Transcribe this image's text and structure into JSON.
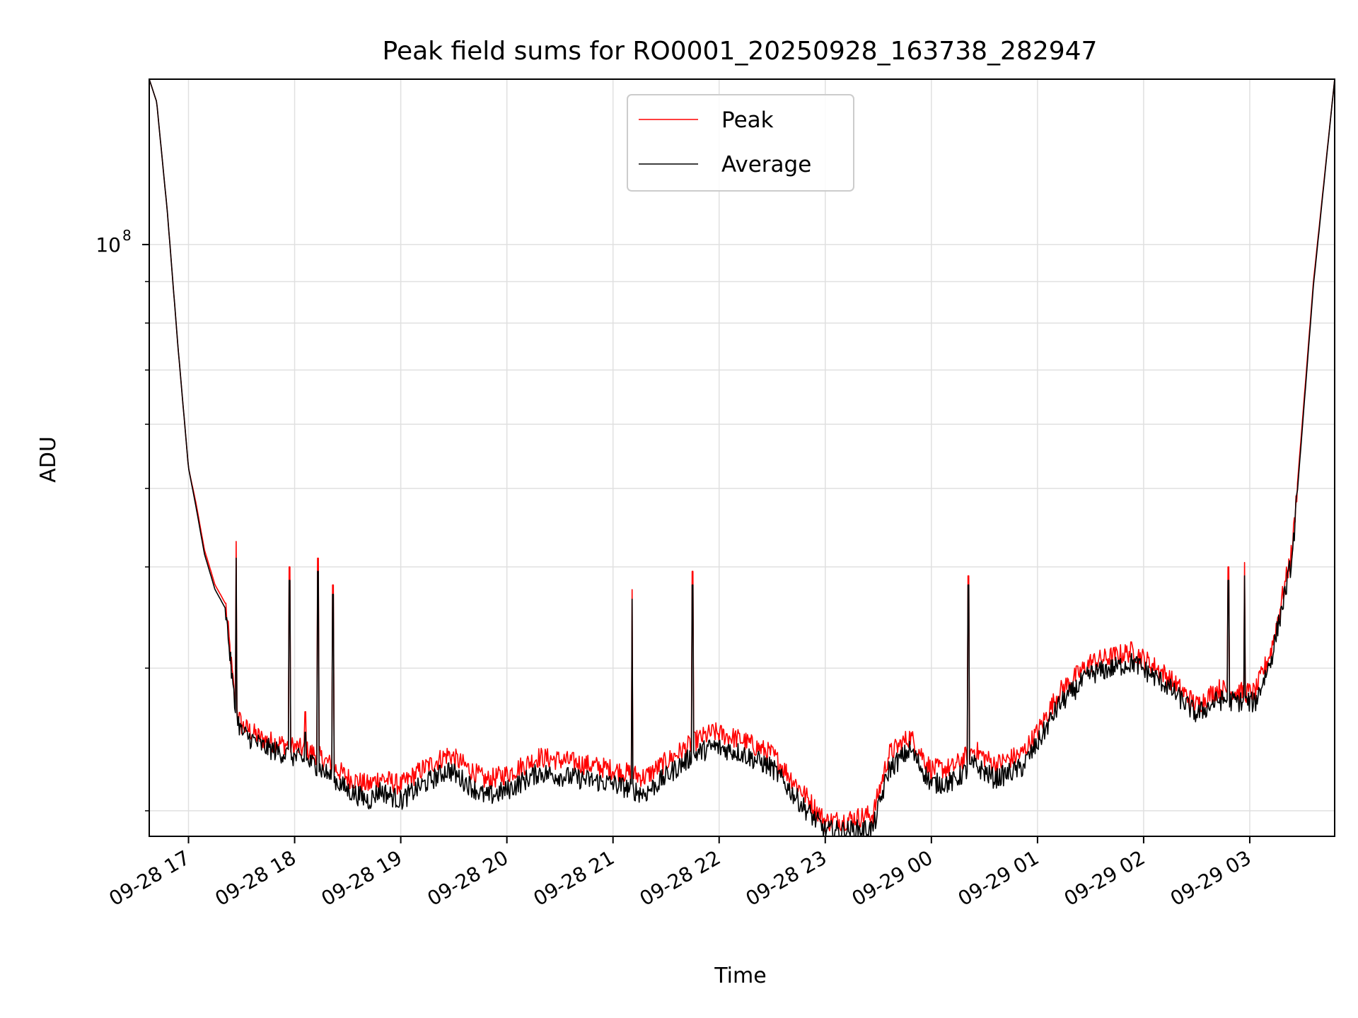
{
  "chart_data": {
    "type": "line",
    "title": "Peak field sums for RO0001_20250928_163738_282947",
    "xlabel": "Time",
    "ylabel": "ADU",
    "yscale": "log",
    "grid": true,
    "legend_position": "top-center",
    "x_ticks": [
      "09-28 17",
      "09-28 18",
      "09-28 19",
      "09-28 20",
      "09-28 21",
      "09-28 22",
      "09-28 23",
      "09-29 00",
      "09-29 01",
      "09-29 02",
      "09-29 03"
    ],
    "x_range_hours_since_0928_1600": [
      0.63,
      11.8
    ],
    "ylim": [
      18600000,
      160000000
    ],
    "y_major_tick": {
      "value": 100000000,
      "base": "10",
      "exponent": "8"
    },
    "y_minor_ticks": [
      20000000,
      30000000,
      40000000,
      50000000,
      60000000,
      70000000,
      80000000,
      90000000,
      200000000
    ],
    "series": [
      {
        "name": "Peak",
        "color": "#ff0000",
        "x_hours": [
          0.63,
          0.7,
          0.8,
          0.9,
          1.0,
          1.07,
          1.15,
          1.25,
          1.3,
          1.35,
          1.44,
          1.5,
          1.7,
          2.0,
          2.2,
          2.5,
          2.7,
          2.8,
          3.0,
          3.2,
          3.45,
          3.8,
          4.0,
          4.3,
          4.6,
          5.0,
          5.3,
          5.6,
          5.8,
          5.95,
          6.2,
          6.5,
          6.8,
          7.0,
          7.2,
          7.45,
          7.6,
          7.8,
          8.0,
          8.2,
          8.4,
          8.6,
          8.85,
          9.0,
          9.2,
          9.5,
          9.9,
          10.2,
          10.5,
          10.7,
          10.9,
          11.05,
          11.2,
          11.4,
          11.6,
          11.8
        ],
        "values": [
          160000000,
          150000000,
          110000000,
          75000000,
          53000000,
          48000000,
          42000000,
          38000000,
          37000000,
          36000000,
          27000000,
          25500000,
          24500000,
          24000000,
          23500000,
          22000000,
          21500000,
          22000000,
          21500000,
          22500000,
          23500000,
          21800000,
          22200000,
          23300000,
          23000000,
          22500000,
          22000000,
          23500000,
          24500000,
          25000000,
          24500000,
          23500000,
          21000000,
          19400000,
          19500000,
          19800000,
          23500000,
          24700000,
          22500000,
          22600000,
          23800000,
          22800000,
          23500000,
          25000000,
          28000000,
          30500000,
          31500000,
          29500000,
          27000000,
          28300000,
          28000000,
          28000000,
          31500000,
          42000000,
          90000000,
          160000000
        ]
      },
      {
        "name": "Average",
        "color": "#000000",
        "x_hours": [
          0.63,
          0.7,
          0.8,
          0.9,
          1.0,
          1.07,
          1.15,
          1.25,
          1.3,
          1.35,
          1.44,
          1.5,
          1.7,
          2.0,
          2.2,
          2.5,
          2.7,
          2.8,
          3.0,
          3.2,
          3.45,
          3.8,
          4.0,
          4.3,
          4.6,
          5.0,
          5.3,
          5.6,
          5.8,
          5.95,
          6.2,
          6.5,
          6.8,
          7.0,
          7.2,
          7.45,
          7.6,
          7.8,
          8.0,
          8.2,
          8.4,
          8.6,
          8.85,
          9.0,
          9.2,
          9.5,
          9.9,
          10.2,
          10.5,
          10.7,
          10.9,
          11.05,
          11.2,
          11.4,
          11.6,
          11.8
        ],
        "values": [
          160000000,
          150000000,
          110000000,
          75000000,
          53000000,
          47500000,
          41500000,
          37500000,
          36500000,
          35500000,
          26500000,
          25000000,
          24000000,
          23300000,
          22800000,
          21200000,
          20600000,
          21200000,
          20600000,
          21500000,
          22500000,
          20800000,
          21200000,
          22300000,
          22000000,
          21600000,
          21000000,
          22600000,
          23600000,
          24000000,
          23600000,
          22600000,
          20200000,
          18900000,
          18900000,
          19000000,
          22500000,
          23800000,
          21600000,
          21700000,
          22800000,
          21900000,
          22600000,
          24200000,
          27000000,
          29500000,
          30500000,
          28700000,
          26300000,
          27400000,
          27300000,
          27200000,
          30700000,
          41000000,
          89000000,
          160000000
        ]
      }
    ],
    "spikes": [
      {
        "x_hours": 1.45,
        "peak": 43000000,
        "average": 41000000
      },
      {
        "x_hours": 1.95,
        "peak": 40000000,
        "average": 38500000
      },
      {
        "x_hours": 2.1,
        "peak": 26500000,
        "average": 25000000
      },
      {
        "x_hours": 2.22,
        "peak": 41000000,
        "average": 39500000
      },
      {
        "x_hours": 2.36,
        "peak": 38000000,
        "average": 37000000
      },
      {
        "x_hours": 5.18,
        "peak": 37500000,
        "average": 36500000
      },
      {
        "x_hours": 5.75,
        "peak": 39500000,
        "average": 38000000
      },
      {
        "x_hours": 8.35,
        "peak": 39000000,
        "average": 38000000
      },
      {
        "x_hours": 10.8,
        "peak": 40000000,
        "average": 38500000
      },
      {
        "x_hours": 10.95,
        "peak": 40500000,
        "average": 39000000
      }
    ]
  }
}
